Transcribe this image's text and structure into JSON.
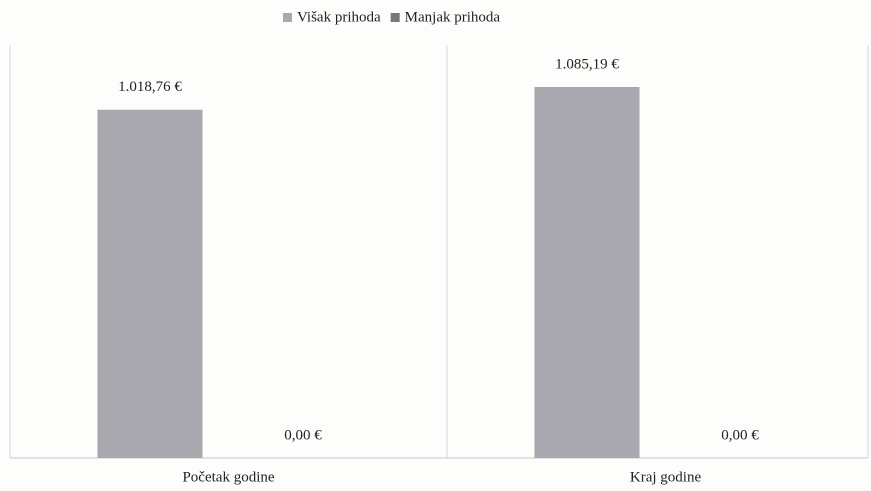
{
  "chart_data": {
    "type": "bar",
    "categories": [
      "Početak godine",
      "Kraj godine"
    ],
    "series": [
      {
        "name": "Višak prihoda",
        "color": "#a8a8ae",
        "values": [
          1018.76,
          1085.19
        ],
        "value_labels": [
          "1.018,76 €",
          "1.085,19 €"
        ]
      },
      {
        "name": "Manjak prihoda",
        "color": "#77777c",
        "values": [
          0,
          0
        ],
        "value_labels": [
          "0,00 €",
          "0,00 €"
        ]
      }
    ],
    "legend": "top"
  }
}
